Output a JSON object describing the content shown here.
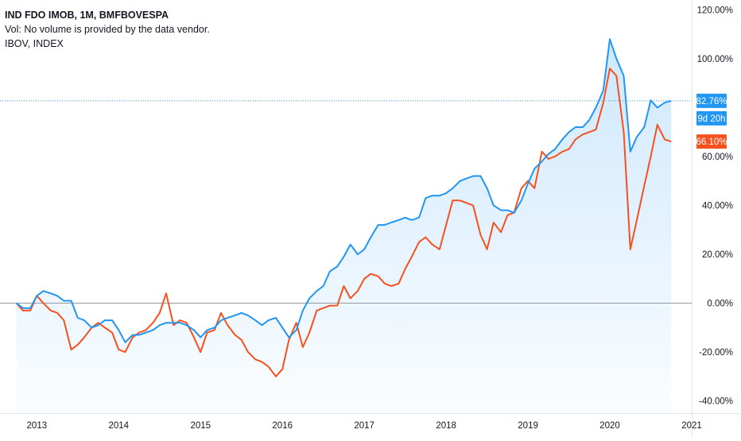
{
  "legend": {
    "line1": "IND FDO IMOB, 1M, BMFBOVESPA",
    "line2": "Vol: No volume is provided by the data vendor.",
    "line3": "IBOV, INDEX"
  },
  "colors": {
    "main_series": "#2196f3",
    "compare_series": "#f4511e",
    "area_fill": "#2196f3",
    "zero_line": "#9598a1",
    "last_value_line": "#2196f3",
    "axis_text": "#131722"
  },
  "badges": {
    "main_last": "82.76%",
    "countdown": "9d 20h",
    "compare_last": "66.10%"
  },
  "chart_data": {
    "type": "line",
    "xlabel": "",
    "ylabel": "",
    "y_axis_position": "right",
    "y_unit": "%",
    "xlim": [
      2012.55,
      2021.0
    ],
    "ylim": [
      -45,
      124
    ],
    "x_ticks": [
      2013,
      2014,
      2015,
      2016,
      2017,
      2018,
      2019,
      2020,
      2021
    ],
    "x_tick_labels": [
      "2013",
      "2014",
      "2015",
      "2016",
      "2017",
      "2018",
      "2019",
      "2020",
      "2021"
    ],
    "y_ticks": [
      120,
      100,
      80,
      60,
      40,
      20,
      0,
      -20,
      -40
    ],
    "y_tick_labels": [
      "120.00%",
      "100.00%",
      "",
      "60.00%",
      "40.00%",
      "20.00%",
      "0.00%",
      "-20.00%",
      "-40.00%"
    ],
    "zero_line": true,
    "grid": false,
    "series": [
      {
        "name": "IND FDO IMOB",
        "role": "main",
        "area": true,
        "last_value": 82.76,
        "points": [
          [
            2012.75,
            0
          ],
          [
            2012.83,
            -2
          ],
          [
            2012.92,
            -2
          ],
          [
            2013.0,
            3
          ],
          [
            2013.08,
            5
          ],
          [
            2013.17,
            4
          ],
          [
            2013.25,
            3
          ],
          [
            2013.33,
            1
          ],
          [
            2013.42,
            1
          ],
          [
            2013.5,
            -6
          ],
          [
            2013.58,
            -7
          ],
          [
            2013.67,
            -10
          ],
          [
            2013.75,
            -9
          ],
          [
            2013.83,
            -7
          ],
          [
            2013.92,
            -7
          ],
          [
            2014.0,
            -11
          ],
          [
            2014.08,
            -16
          ],
          [
            2014.17,
            -13
          ],
          [
            2014.25,
            -13
          ],
          [
            2014.33,
            -12
          ],
          [
            2014.42,
            -11
          ],
          [
            2014.5,
            -9
          ],
          [
            2014.58,
            -8
          ],
          [
            2014.67,
            -8
          ],
          [
            2014.75,
            -8
          ],
          [
            2014.83,
            -9
          ],
          [
            2014.92,
            -11
          ],
          [
            2015.0,
            -14
          ],
          [
            2015.08,
            -11
          ],
          [
            2015.17,
            -10
          ],
          [
            2015.25,
            -7
          ],
          [
            2015.33,
            -6
          ],
          [
            2015.42,
            -5
          ],
          [
            2015.5,
            -4
          ],
          [
            2015.58,
            -5
          ],
          [
            2015.67,
            -7
          ],
          [
            2015.75,
            -9
          ],
          [
            2015.83,
            -7
          ],
          [
            2015.92,
            -6
          ],
          [
            2016.0,
            -10
          ],
          [
            2016.08,
            -14
          ],
          [
            2016.17,
            -11
          ],
          [
            2016.25,
            -3
          ],
          [
            2016.33,
            2
          ],
          [
            2016.42,
            5
          ],
          [
            2016.5,
            7
          ],
          [
            2016.58,
            13
          ],
          [
            2016.67,
            15
          ],
          [
            2016.75,
            19
          ],
          [
            2016.83,
            24
          ],
          [
            2016.92,
            20
          ],
          [
            2017.0,
            22
          ],
          [
            2017.08,
            27
          ],
          [
            2017.17,
            32
          ],
          [
            2017.25,
            32
          ],
          [
            2017.33,
            33
          ],
          [
            2017.42,
            34
          ],
          [
            2017.5,
            35
          ],
          [
            2017.58,
            34
          ],
          [
            2017.67,
            35
          ],
          [
            2017.75,
            43
          ],
          [
            2017.83,
            44
          ],
          [
            2017.92,
            44
          ],
          [
            2018.0,
            45
          ],
          [
            2018.08,
            47
          ],
          [
            2018.17,
            50
          ],
          [
            2018.25,
            51
          ],
          [
            2018.33,
            52
          ],
          [
            2018.42,
            52
          ],
          [
            2018.5,
            47
          ],
          [
            2018.58,
            40
          ],
          [
            2018.67,
            38
          ],
          [
            2018.75,
            38
          ],
          [
            2018.83,
            37
          ],
          [
            2018.92,
            42
          ],
          [
            2019.0,
            49
          ],
          [
            2019.08,
            55
          ],
          [
            2019.17,
            58
          ],
          [
            2019.25,
            61
          ],
          [
            2019.33,
            63
          ],
          [
            2019.42,
            67
          ],
          [
            2019.5,
            70
          ],
          [
            2019.58,
            72
          ],
          [
            2019.67,
            72
          ],
          [
            2019.75,
            75
          ],
          [
            2019.83,
            80
          ],
          [
            2019.92,
            87
          ],
          [
            2020.0,
            108
          ],
          [
            2020.08,
            100
          ],
          [
            2020.17,
            93
          ],
          [
            2020.25,
            62
          ],
          [
            2020.33,
            68
          ],
          [
            2020.42,
            72
          ],
          [
            2020.5,
            83
          ],
          [
            2020.58,
            80
          ],
          [
            2020.67,
            82
          ],
          [
            2020.75,
            82.76
          ]
        ]
      },
      {
        "name": "IBOV",
        "role": "compare",
        "area": false,
        "last_value": 66.1,
        "points": [
          [
            2012.75,
            0
          ],
          [
            2012.83,
            -3
          ],
          [
            2012.92,
            -3
          ],
          [
            2013.0,
            3
          ],
          [
            2013.08,
            0
          ],
          [
            2013.17,
            -3
          ],
          [
            2013.25,
            -4
          ],
          [
            2013.33,
            -7
          ],
          [
            2013.42,
            -19
          ],
          [
            2013.5,
            -17
          ],
          [
            2013.58,
            -14
          ],
          [
            2013.67,
            -10
          ],
          [
            2013.75,
            -8
          ],
          [
            2013.83,
            -10
          ],
          [
            2013.92,
            -12
          ],
          [
            2014.0,
            -19
          ],
          [
            2014.08,
            -20
          ],
          [
            2014.17,
            -14
          ],
          [
            2014.25,
            -12
          ],
          [
            2014.33,
            -11
          ],
          [
            2014.42,
            -8
          ],
          [
            2014.5,
            -4
          ],
          [
            2014.58,
            4
          ],
          [
            2014.67,
            -9
          ],
          [
            2014.75,
            -7
          ],
          [
            2014.83,
            -8
          ],
          [
            2014.92,
            -14
          ],
          [
            2015.0,
            -20
          ],
          [
            2015.08,
            -12
          ],
          [
            2015.17,
            -11
          ],
          [
            2015.25,
            -4
          ],
          [
            2015.33,
            -9
          ],
          [
            2015.42,
            -13
          ],
          [
            2015.5,
            -15
          ],
          [
            2015.58,
            -20
          ],
          [
            2015.67,
            -23
          ],
          [
            2015.75,
            -24
          ],
          [
            2015.83,
            -26
          ],
          [
            2015.92,
            -30
          ],
          [
            2016.0,
            -27
          ],
          [
            2016.08,
            -15
          ],
          [
            2016.17,
            -8
          ],
          [
            2016.25,
            -18
          ],
          [
            2016.33,
            -12
          ],
          [
            2016.42,
            -3
          ],
          [
            2016.5,
            -2
          ],
          [
            2016.58,
            -1
          ],
          [
            2016.67,
            -1
          ],
          [
            2016.75,
            7
          ],
          [
            2016.83,
            2
          ],
          [
            2016.92,
            5
          ],
          [
            2017.0,
            10
          ],
          [
            2017.08,
            12
          ],
          [
            2017.17,
            11
          ],
          [
            2017.25,
            8
          ],
          [
            2017.33,
            7
          ],
          [
            2017.42,
            8
          ],
          [
            2017.5,
            14
          ],
          [
            2017.58,
            19
          ],
          [
            2017.67,
            25
          ],
          [
            2017.75,
            27
          ],
          [
            2017.83,
            24
          ],
          [
            2017.92,
            22
          ],
          [
            2018.0,
            32
          ],
          [
            2018.08,
            42
          ],
          [
            2018.17,
            42
          ],
          [
            2018.25,
            41
          ],
          [
            2018.33,
            40
          ],
          [
            2018.42,
            28
          ],
          [
            2018.5,
            22
          ],
          [
            2018.58,
            33
          ],
          [
            2018.67,
            29
          ],
          [
            2018.75,
            36
          ],
          [
            2018.83,
            37
          ],
          [
            2018.92,
            47
          ],
          [
            2019.0,
            50
          ],
          [
            2019.08,
            47
          ],
          [
            2019.17,
            62
          ],
          [
            2019.25,
            59
          ],
          [
            2019.33,
            60
          ],
          [
            2019.42,
            62
          ],
          [
            2019.5,
            63
          ],
          [
            2019.58,
            67
          ],
          [
            2019.67,
            69
          ],
          [
            2019.75,
            70
          ],
          [
            2019.83,
            71
          ],
          [
            2019.92,
            82
          ],
          [
            2020.0,
            96
          ],
          [
            2020.08,
            93
          ],
          [
            2020.17,
            70
          ],
          [
            2020.25,
            22
          ],
          [
            2020.33,
            34
          ],
          [
            2020.42,
            48
          ],
          [
            2020.5,
            60
          ],
          [
            2020.58,
            73
          ],
          [
            2020.67,
            67
          ],
          [
            2020.75,
            66.1
          ]
        ]
      }
    ]
  }
}
